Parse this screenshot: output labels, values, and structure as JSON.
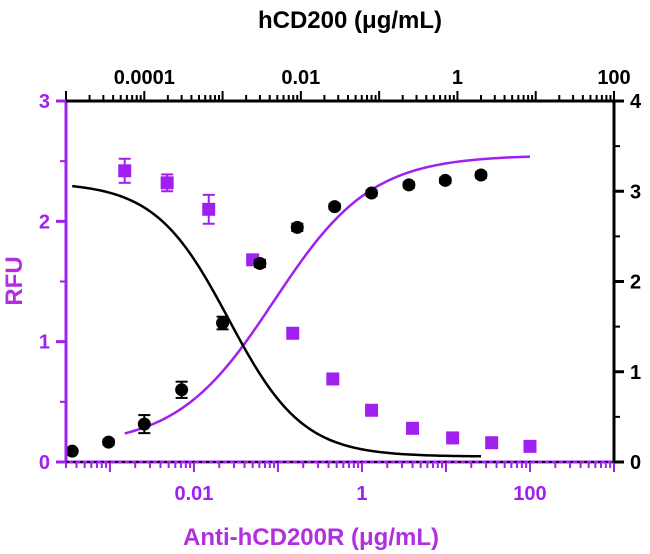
{
  "chart_data": {
    "type": "scatter",
    "title": "",
    "xlabel_bottom": "Anti-hCD200R (μg/mL)",
    "xlabel_top": "hCD200 (μg/mL)",
    "ylabel_left": "RFU",
    "ylabel_right": "",
    "x_bottom": {
      "scale": "log",
      "range": [
        0.0003,
        1000
      ],
      "ticks": [
        0.01,
        1,
        100
      ],
      "tick_labels": [
        "0.01",
        "1",
        "100"
      ]
    },
    "x_top": {
      "scale": "log",
      "range": [
        1e-05,
        100
      ],
      "ticks": [
        0.0001,
        0.01,
        1,
        100
      ],
      "tick_labels": [
        "0.0001",
        "0.01",
        "1",
        "100"
      ]
    },
    "y_left": {
      "range": [
        0,
        3
      ],
      "ticks": [
        0,
        1,
        2,
        3
      ],
      "tick_labels": [
        "0",
        "1",
        "2",
        "3"
      ]
    },
    "y_right": {
      "range": [
        0,
        4
      ],
      "ticks": [
        0,
        1,
        2,
        3,
        4
      ],
      "tick_labels": [
        "0",
        "1",
        "2",
        "3",
        "4"
      ]
    },
    "grid": false,
    "legend": "none",
    "series": [
      {
        "axis": "bottom-left",
        "marker": "square",
        "color": "#a020f0",
        "x": [
          0.0015,
          0.0048,
          0.015,
          0.05,
          0.15,
          0.45,
          1.3,
          4,
          12,
          35,
          100
        ],
        "y": [
          2.42,
          2.32,
          2.1,
          1.68,
          1.07,
          0.69,
          0.43,
          0.28,
          0.2,
          0.16,
          0.13
        ],
        "err": [
          0.1,
          0.07,
          0.12,
          0.04,
          0.04,
          0.04,
          0.04,
          0.03,
          0.03,
          0.02,
          0.02
        ],
        "fit": {
          "model": "4pl",
          "top": 2.55,
          "bottom": 0.13,
          "ec50": 0.09,
          "hill": -0.75
        }
      },
      {
        "axis": "top-right",
        "marker": "circle",
        "color": "#000000",
        "x": [
          1.2e-05,
          3.5e-05,
          0.0001,
          0.0003,
          0.001,
          0.003,
          0.009,
          0.027,
          0.08,
          0.24,
          0.7,
          2
        ],
        "y": [
          0.12,
          0.22,
          0.42,
          0.8,
          1.54,
          2.2,
          2.6,
          2.83,
          2.98,
          3.07,
          3.12,
          3.18
        ],
        "err": [
          0.02,
          0.03,
          0.1,
          0.09,
          0.07,
          0.04,
          0.04,
          0.03,
          0.03,
          0.03,
          0.03,
          0.03
        ],
        "fit": {
          "model": "4pl",
          "top": 3.1,
          "bottom": 0.06,
          "ec50": 0.0012,
          "hill": 0.92
        }
      }
    ]
  }
}
